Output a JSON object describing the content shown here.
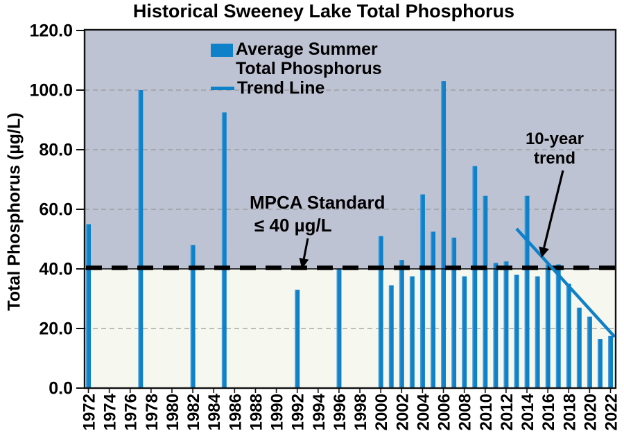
{
  "chart_data": {
    "type": "bar",
    "title": "Historical Sweeney Lake Total Phosphorus",
    "ylabel": "Total Phosphorus (µg/L)",
    "y_axis": {
      "min": 0,
      "max": 120,
      "tick_step": 20,
      "ticks": [
        {
          "value": 0,
          "label": "0.0"
        },
        {
          "value": 20,
          "label": "20.0"
        },
        {
          "value": 40,
          "label": "40.0"
        },
        {
          "value": 60,
          "label": "60.0"
        },
        {
          "value": 80,
          "label": "80.0"
        },
        {
          "value": 100,
          "label": "100.0"
        },
        {
          "value": 120,
          "label": "120.0"
        }
      ],
      "gridlines": [
        20,
        60,
        80,
        100
      ],
      "grid_style": "dashed"
    },
    "x_axis": {
      "tick_years": [
        1972,
        1974,
        1976,
        1978,
        1980,
        1982,
        1984,
        1986,
        1988,
        1990,
        1992,
        1994,
        1996,
        1998,
        2000,
        2002,
        2004,
        2006,
        2008,
        2010,
        2012,
        2014,
        2016,
        2018,
        2020,
        2022
      ],
      "label_rotation_deg": -90
    },
    "series": [
      {
        "name": "Average Summer Total Phosphorus",
        "points": [
          {
            "year": 1972,
            "value": 55
          },
          {
            "year": 1977,
            "value": 100
          },
          {
            "year": 1982,
            "value": 48
          },
          {
            "year": 1985,
            "value": 92.5
          },
          {
            "year": 1992,
            "value": 33
          },
          {
            "year": 1996,
            "value": 40
          },
          {
            "year": 2000,
            "value": 51
          },
          {
            "year": 2001,
            "value": 34.5
          },
          {
            "year": 2002,
            "value": 43
          },
          {
            "year": 2003,
            "value": 37.5
          },
          {
            "year": 2004,
            "value": 65
          },
          {
            "year": 2005,
            "value": 52.5
          },
          {
            "year": 2006,
            "value": 103
          },
          {
            "year": 2007,
            "value": 50.5
          },
          {
            "year": 2008,
            "value": 37.5
          },
          {
            "year": 2009,
            "value": 74.5
          },
          {
            "year": 2010,
            "value": 64.5
          },
          {
            "year": 2011,
            "value": 42
          },
          {
            "year": 2012,
            "value": 42.5
          },
          {
            "year": 2013,
            "value": 38
          },
          {
            "year": 2014,
            "value": 64.5
          },
          {
            "year": 2015,
            "value": 37.5
          },
          {
            "year": 2016,
            "value": 41.5
          },
          {
            "year": 2017,
            "value": 41.5
          },
          {
            "year": 2018,
            "value": 35
          },
          {
            "year": 2019,
            "value": 27
          },
          {
            "year": 2020,
            "value": 24
          },
          {
            "year": 2021,
            "value": 16.5
          },
          {
            "year": 2022,
            "value": 17.5
          }
        ]
      }
    ],
    "standard_line": {
      "value": 40,
      "style": "black-dashed"
    },
    "trend_line": {
      "name": "Trend Line",
      "start": {
        "year": 2013,
        "value": 53.5
      },
      "end": {
        "year": 2022.4,
        "value": 17.2
      }
    },
    "legend": {
      "position": "inside-top",
      "bar_label_line1": "Average Summer",
      "bar_label_line2": "Total Phosphorus",
      "trend_label": "Trend Line"
    },
    "annotations": {
      "standard_label_line1": "MPCA Standard",
      "standard_label_line2": "≤ 40 µg/L",
      "trend_label_line1": "10-year",
      "trend_label_line2": "trend"
    },
    "colors": {
      "bar": "#0e81c9",
      "bar_highlight": "#63aadb",
      "trend": "#0e81c9",
      "bg_above_standard": "#bec3d4",
      "bg_below_standard": "#f6f7ee",
      "gridline": "#999999",
      "standard_line": "#000000",
      "axis": "#111111",
      "text": "#000000"
    }
  }
}
